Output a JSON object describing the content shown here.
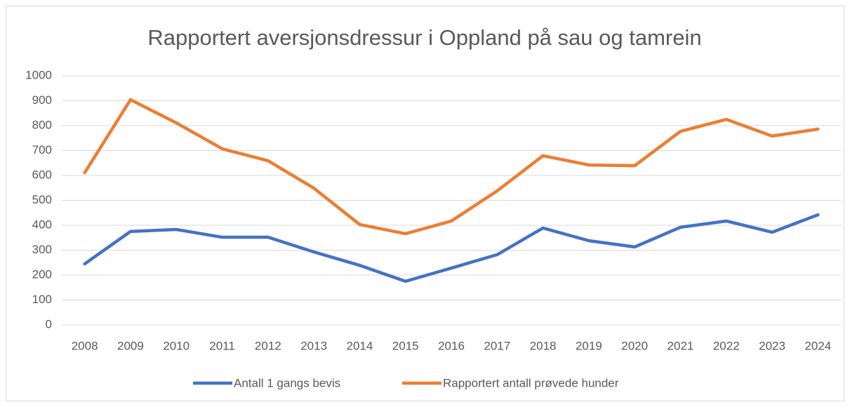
{
  "chart_data": {
    "type": "line",
    "title": "Rapportert aversjonsdressur i Oppland på sau og tamrein",
    "categories": [
      "2008",
      "2009",
      "2010",
      "2011",
      "2012",
      "2013",
      "2014",
      "2015",
      "2016",
      "2017",
      "2018",
      "2019",
      "2020",
      "2021",
      "2022",
      "2023",
      "2024"
    ],
    "series": [
      {
        "name": "Antall 1 gangs bevis",
        "color": "#4472c4",
        "values": [
          245,
          375,
          383,
          352,
          352,
          293,
          239,
          175,
          228,
          282,
          389,
          338,
          313,
          392,
          417,
          372,
          442
        ]
      },
      {
        "name": "Rapportert antall prøvede hunder",
        "color": "#ed7d31",
        "values": [
          611,
          904,
          811,
          707,
          659,
          549,
          403,
          366,
          417,
          538,
          679,
          642,
          639,
          777,
          825,
          758,
          786
        ]
      }
    ],
    "ylim": [
      0,
      1000
    ],
    "yticks": [
      0,
      100,
      200,
      300,
      400,
      500,
      600,
      700,
      800,
      900,
      1000
    ],
    "grid": true,
    "legend": "bottom"
  }
}
